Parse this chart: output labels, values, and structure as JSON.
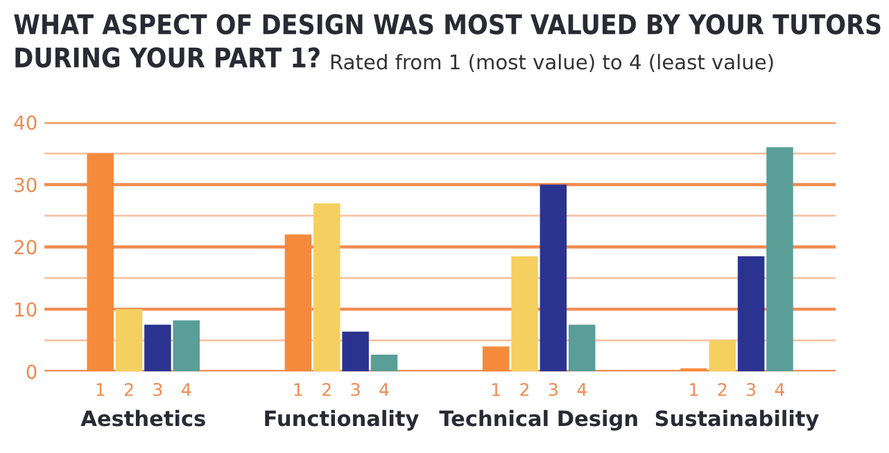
{
  "chart_data": {
    "type": "bar",
    "title": "WHAT ASPECT OF DESIGN WAS MOST VALUED BY YOUR TUTORS\nDURING YOUR PART 1?",
    "subtitle": "Rated from 1 (most value) to 4 (least value)",
    "categories": [
      "Aesthetics",
      "Functionality",
      "Technical Design",
      "Sustainability"
    ],
    "series": [
      {
        "name": "1",
        "color": "#f58a3c",
        "values": [
          35,
          22,
          4,
          0.5
        ]
      },
      {
        "name": "2",
        "color": "#f5d060",
        "values": [
          10,
          27,
          18.5,
          5
        ]
      },
      {
        "name": "3",
        "color": "#2b3390",
        "values": [
          7.5,
          6.4,
          30,
          18.5
        ]
      },
      {
        "name": "4",
        "color": "#5a9e98",
        "values": [
          8.2,
          2.7,
          7.5,
          36
        ]
      }
    ],
    "ylim": [
      0,
      40
    ],
    "yticks": [
      0,
      {
        "value": 5,
        "label": null
      },
      10,
      {
        "value": 15,
        "label": null
      },
      20,
      {
        "value": 25,
        "label": null
      },
      30,
      {
        "value": 35,
        "label": null
      },
      40
    ],
    "grid": "y",
    "legend": false
  }
}
